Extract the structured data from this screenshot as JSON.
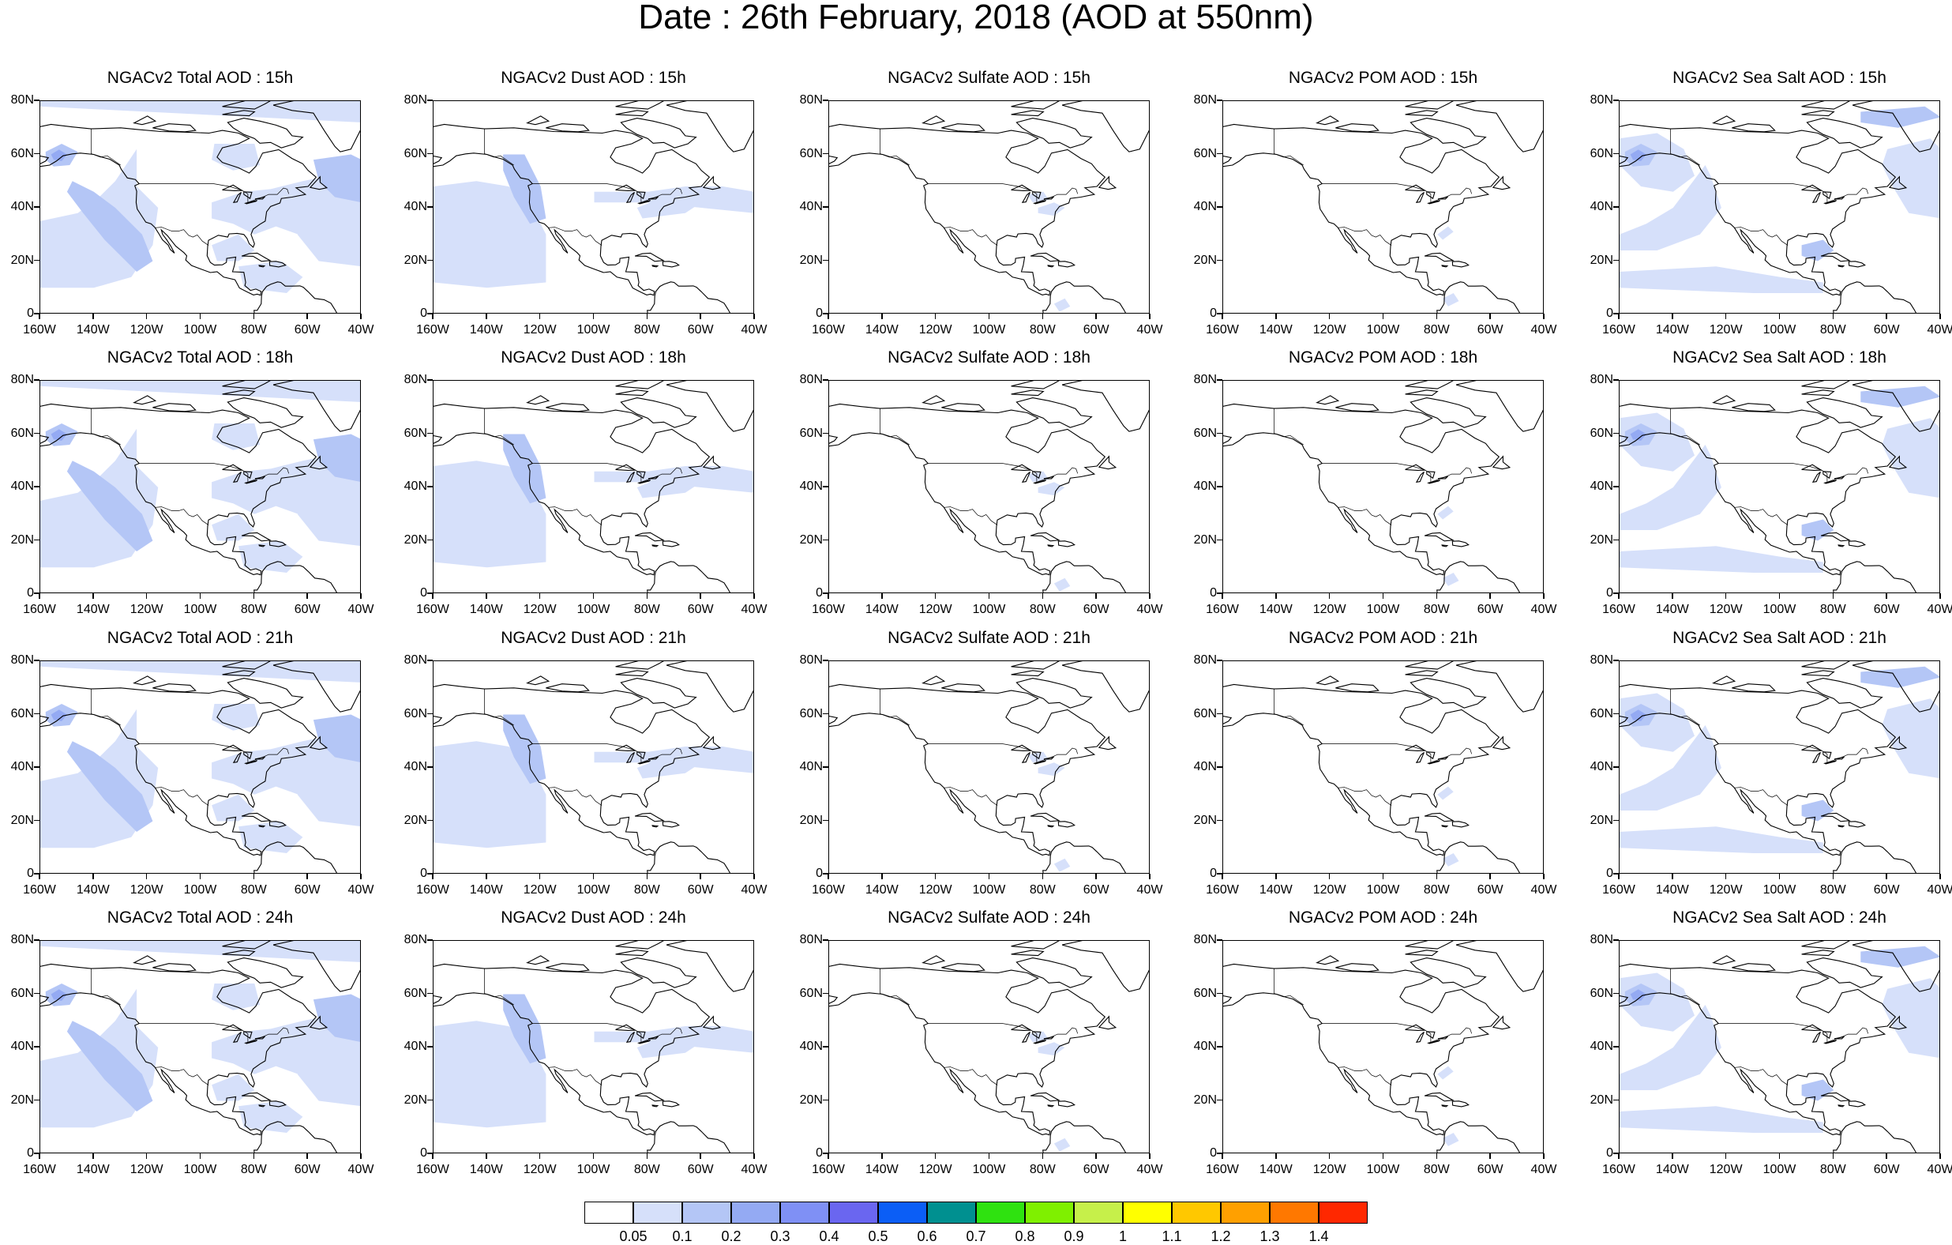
{
  "title": "Date : 26th February, 2018 (AOD at 550nm)",
  "x_ticks": [
    "160W",
    "140W",
    "120W",
    "100W",
    "80W",
    "60W",
    "40W"
  ],
  "y_ticks": [
    "80N",
    "60N",
    "40N",
    "20N",
    "0"
  ],
  "panels": [
    {
      "title": "NGACv2 Total AOD : 15h",
      "species": "total",
      "hour": 15
    },
    {
      "title": "NGACv2 Dust AOD : 15h",
      "species": "dust",
      "hour": 15
    },
    {
      "title": "NGACv2 Sulfate AOD : 15h",
      "species": "sulfate",
      "hour": 15
    },
    {
      "title": "NGACv2 POM AOD : 15h",
      "species": "pom",
      "hour": 15
    },
    {
      "title": "NGACv2 Sea Salt AOD : 15h",
      "species": "seasalt",
      "hour": 15
    },
    {
      "title": "NGACv2 Total AOD : 18h",
      "species": "total",
      "hour": 18
    },
    {
      "title": "NGACv2 Dust AOD : 18h",
      "species": "dust",
      "hour": 18
    },
    {
      "title": "NGACv2 Sulfate AOD : 18h",
      "species": "sulfate",
      "hour": 18
    },
    {
      "title": "NGACv2 POM AOD : 18h",
      "species": "pom",
      "hour": 18
    },
    {
      "title": "NGACv2 Sea Salt AOD : 18h",
      "species": "seasalt",
      "hour": 18
    },
    {
      "title": "NGACv2 Total AOD : 21h",
      "species": "total",
      "hour": 21
    },
    {
      "title": "NGACv2 Dust AOD : 21h",
      "species": "dust",
      "hour": 21
    },
    {
      "title": "NGACv2 Sulfate AOD : 21h",
      "species": "sulfate",
      "hour": 21
    },
    {
      "title": "NGACv2 POM AOD : 21h",
      "species": "pom",
      "hour": 21
    },
    {
      "title": "NGACv2 Sea Salt AOD : 21h",
      "species": "seasalt",
      "hour": 21
    },
    {
      "title": "NGACv2 Total AOD : 24h",
      "species": "total",
      "hour": 24
    },
    {
      "title": "NGACv2 Dust AOD : 24h",
      "species": "dust",
      "hour": 24
    },
    {
      "title": "NGACv2 Sulfate AOD : 24h",
      "species": "sulfate",
      "hour": 24
    },
    {
      "title": "NGACv2 POM AOD : 24h",
      "species": "pom",
      "hour": 24
    },
    {
      "title": "NGACv2 Sea Salt  AOD : 24h",
      "species": "seasalt",
      "hour": 24
    }
  ],
  "colorbar": {
    "colors": [
      "#ffffff",
      "#d6e0fa",
      "#b4c6f6",
      "#94aaf3",
      "#7f90f5",
      "#6a66f0",
      "#0b5ef6",
      "#009090",
      "#2fe210",
      "#7ff000",
      "#c6f04a",
      "#ffff00",
      "#ffc800",
      "#ffa000",
      "#ff7800",
      "#ff2800"
    ],
    "labels": [
      "0.05",
      "0.1",
      "0.2",
      "0.3",
      "0.4",
      "0.5",
      "0.6",
      "0.7",
      "0.8",
      "0.9",
      "1",
      "1.1",
      "1.2",
      "1.3",
      "1.4"
    ]
  }
}
